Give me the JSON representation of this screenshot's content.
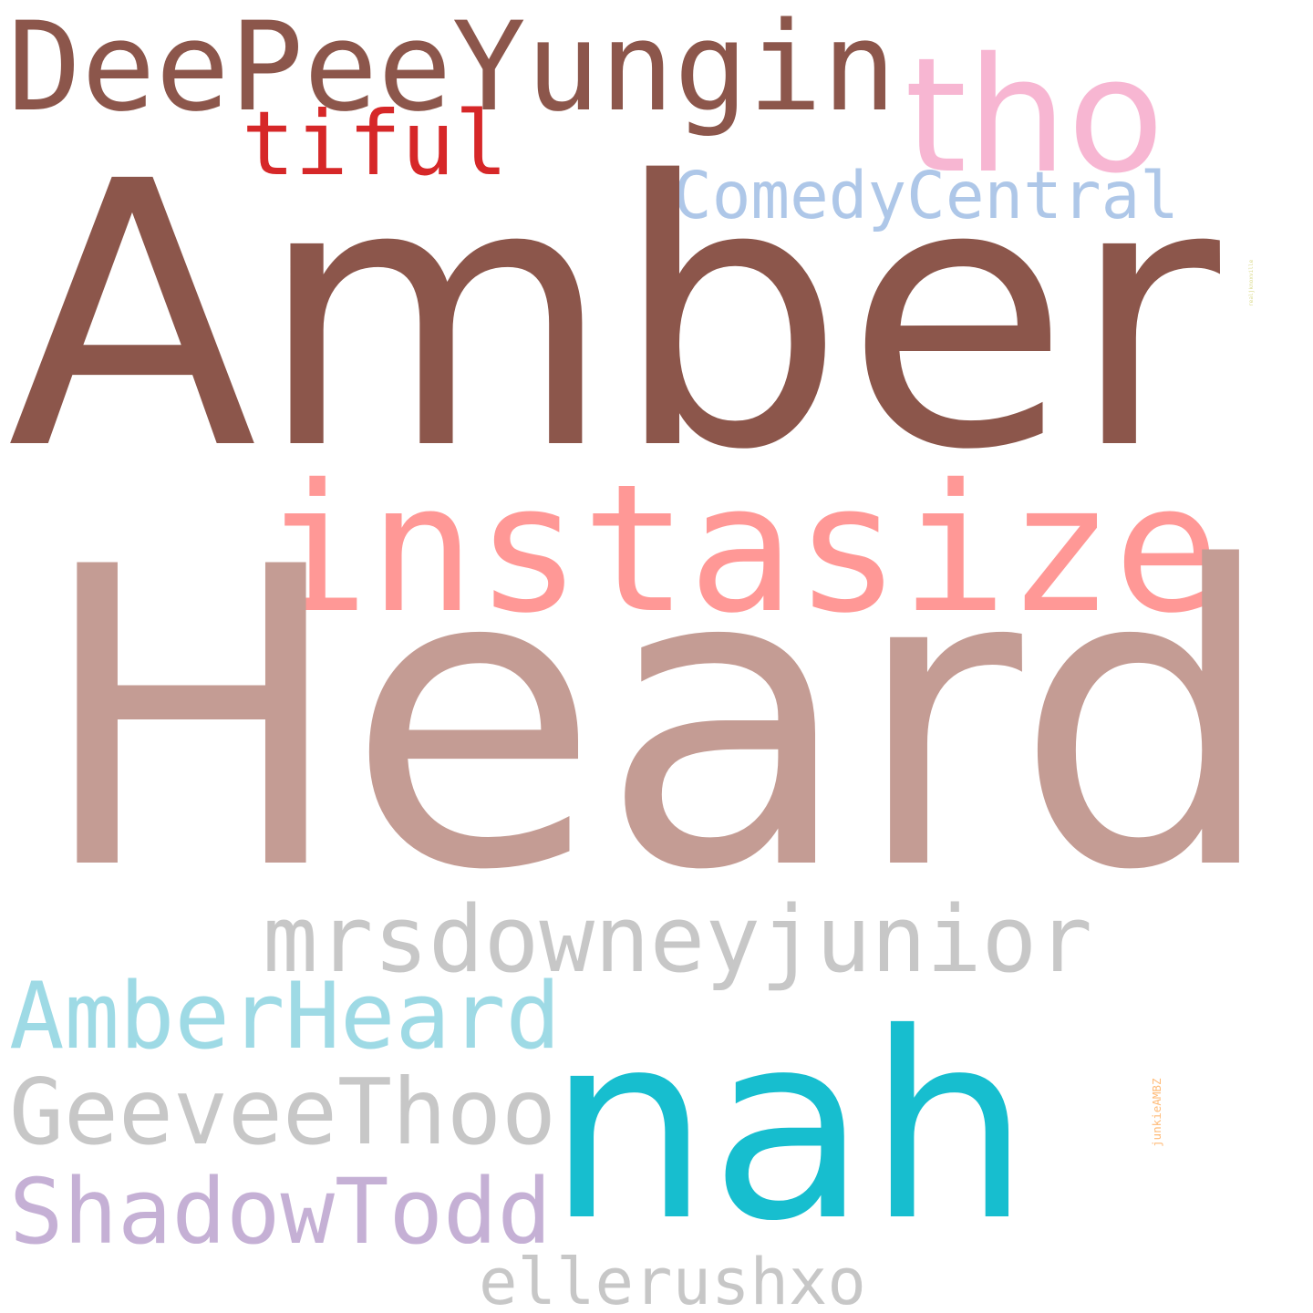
{
  "words": [
    {
      "id": "deepee",
      "text": "DeePeeYungin",
      "color": "#8c564b"
    },
    {
      "id": "tho",
      "text": "tho",
      "color": "#f7b6d2"
    },
    {
      "id": "tiful",
      "text": "tiful",
      "color": "#d62728"
    },
    {
      "id": "comedy",
      "text": "ComedyCentral",
      "color": "#aec7e8"
    },
    {
      "id": "amber",
      "text": "Amber",
      "color": "#8c564b"
    },
    {
      "id": "instasize",
      "text": "instasize",
      "color": "#ff9896"
    },
    {
      "id": "heard",
      "text": "Heard",
      "color": "#c49c94"
    },
    {
      "id": "realj",
      "text": "realjknoxville",
      "color": "#dbdb8d",
      "orientation": "vertical"
    },
    {
      "id": "mrs",
      "text": "mrsdowneyjunior",
      "color": "#c7c7c7"
    },
    {
      "id": "amberh",
      "text": "AmberHeard",
      "color": "#9edae5"
    },
    {
      "id": "geevee",
      "text": "GeeveeThoo",
      "color": "#c7c7c7"
    },
    {
      "id": "nah",
      "text": "nah",
      "color": "#17becf"
    },
    {
      "id": "shadow",
      "text": "ShadowTodd",
      "color": "#c5b0d5"
    },
    {
      "id": "junkie",
      "text": "junkieAMBZ",
      "color": "#ffbb78",
      "orientation": "vertical"
    },
    {
      "id": "elle",
      "text": "ellerushxo",
      "color": "#c7c7c7"
    }
  ]
}
